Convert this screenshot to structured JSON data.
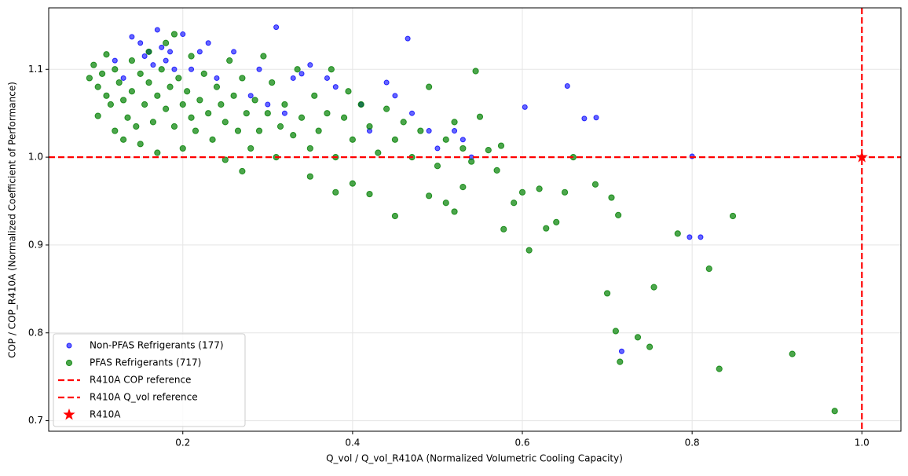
{
  "chart_data": {
    "type": "scatter",
    "x_label": "Q_vol / Q_vol_R410A (Normalized Volumetric Cooling Capacity)",
    "y_label": "COP / COP_R410A (Normalized Coefficient of Performance)",
    "xlim": [
      0.042,
      1.046
    ],
    "ylim": [
      0.688,
      1.17
    ],
    "xticks": [
      0.2,
      0.4,
      0.6,
      0.8,
      {
        "value": 1,
        "label": "1.0"
      }
    ],
    "yticks": [
      0.7,
      0.8,
      0.9,
      {
        "value": 1,
        "label": "1.0"
      },
      1.1
    ],
    "grid": true,
    "legend": "lower left",
    "series": [
      {
        "name": "Non-PFAS Refrigerants (177)",
        "color": "#0000ff",
        "x": [
          0.31,
          0.465,
          0.603,
          0.653,
          0.673,
          0.687,
          0.8,
          0.797,
          0.81,
          0.717,
          0.53,
          0.49,
          0.44,
          0.45,
          0.41,
          0.37,
          0.35,
          0.34,
          0.38,
          0.29,
          0.26,
          0.23,
          0.2,
          0.17,
          0.14,
          0.15,
          0.16,
          0.18,
          0.19,
          0.21,
          0.12,
          0.13,
          0.155,
          0.165,
          0.175,
          0.185,
          0.22,
          0.24,
          0.28,
          0.3,
          0.32,
          0.33,
          0.42,
          0.47,
          0.5,
          0.52,
          0.54
        ],
        "values": [
          1.148,
          1.135,
          1.057,
          1.081,
          1.044,
          1.045,
          1.001,
          0.909,
          0.909,
          0.779,
          1.02,
          1.03,
          1.085,
          1.07,
          1.06,
          1.09,
          1.105,
          1.095,
          1.08,
          1.1,
          1.12,
          1.13,
          1.14,
          1.145,
          1.137,
          1.13,
          1.12,
          1.11,
          1.1,
          1.1,
          1.11,
          1.09,
          1.115,
          1.105,
          1.125,
          1.12,
          1.12,
          1.09,
          1.07,
          1.06,
          1.05,
          1.09,
          1.03,
          1.05,
          1.01,
          1.03,
          1.0
        ]
      },
      {
        "name": "PFAS Refrigerants (717)",
        "color": "#008000",
        "x": [
          0.09,
          0.095,
          0.1,
          0.1,
          0.105,
          0.11,
          0.11,
          0.115,
          0.12,
          0.12,
          0.125,
          0.13,
          0.13,
          0.135,
          0.14,
          0.14,
          0.145,
          0.15,
          0.15,
          0.155,
          0.16,
          0.16,
          0.165,
          0.17,
          0.17,
          0.175,
          0.18,
          0.18,
          0.185,
          0.19,
          0.19,
          0.195,
          0.2,
          0.2,
          0.205,
          0.21,
          0.21,
          0.215,
          0.22,
          0.225,
          0.23,
          0.235,
          0.24,
          0.245,
          0.25,
          0.25,
          0.255,
          0.26,
          0.265,
          0.27,
          0.275,
          0.28,
          0.285,
          0.29,
          0.295,
          0.3,
          0.305,
          0.31,
          0.315,
          0.32,
          0.33,
          0.335,
          0.34,
          0.35,
          0.355,
          0.36,
          0.37,
          0.375,
          0.38,
          0.39,
          0.395,
          0.4,
          0.41,
          0.42,
          0.43,
          0.44,
          0.45,
          0.46,
          0.47,
          0.48,
          0.49,
          0.5,
          0.51,
          0.52,
          0.53,
          0.54,
          0.545,
          0.55,
          0.56,
          0.575,
          0.57,
          0.59,
          0.6,
          0.62,
          0.628,
          0.64,
          0.608,
          0.578,
          0.66,
          0.686,
          0.705,
          0.713,
          0.7,
          0.71,
          0.736,
          0.75,
          0.755,
          0.715,
          0.783,
          0.82,
          0.848,
          0.832,
          0.918,
          0.968,
          0.45,
          0.49,
          0.51,
          0.52,
          0.38,
          0.4,
          0.42,
          0.35,
          0.27,
          0.53,
          0.65
        ],
        "values": [
          1.09,
          1.105,
          1.08,
          1.047,
          1.095,
          1.07,
          1.117,
          1.06,
          1.03,
          1.1,
          1.085,
          1.02,
          1.065,
          1.045,
          1.11,
          1.075,
          1.035,
          1.095,
          1.015,
          1.06,
          1.12,
          1.085,
          1.04,
          1.07,
          1.005,
          1.1,
          1.055,
          1.13,
          1.08,
          1.035,
          1.14,
          1.09,
          1.06,
          1.01,
          1.075,
          1.045,
          1.115,
          1.03,
          1.065,
          1.095,
          1.05,
          1.02,
          1.08,
          1.06,
          1.04,
          0.997,
          1.11,
          1.07,
          1.03,
          1.09,
          1.05,
          1.01,
          1.065,
          1.03,
          1.115,
          1.05,
          1.085,
          1.0,
          1.035,
          1.06,
          1.025,
          1.1,
          1.045,
          1.01,
          1.07,
          1.03,
          1.05,
          1.1,
          1.0,
          1.045,
          1.075,
          1.02,
          1.06,
          1.035,
          1.005,
          1.055,
          1.02,
          1.04,
          1.0,
          1.03,
          1.08,
          0.99,
          1.02,
          1.04,
          1.01,
          0.995,
          1.098,
          1.046,
          1.008,
          1.013,
          0.985,
          0.948,
          0.96,
          0.964,
          0.919,
          0.926,
          0.894,
          0.918,
          1.0,
          0.969,
          0.954,
          0.934,
          0.845,
          0.802,
          0.795,
          0.784,
          0.852,
          0.767,
          0.913,
          0.873,
          0.933,
          0.759,
          0.776,
          0.711,
          0.933,
          0.956,
          0.948,
          0.938,
          0.96,
          0.97,
          0.958,
          0.978,
          0.984,
          0.966,
          0.96
        ]
      },
      {
        "name": "R410A",
        "color": "#ff0000",
        "marker": "star",
        "x": [
          1
        ],
        "values": [
          1
        ]
      }
    ],
    "reference_lines": [
      {
        "name": "R410A COP reference",
        "axis": "y",
        "value": 1,
        "color": "#ff0000"
      },
      {
        "name": "R410A Q_vol reference",
        "axis": "x",
        "value": 1,
        "color": "#ff0000"
      }
    ]
  }
}
